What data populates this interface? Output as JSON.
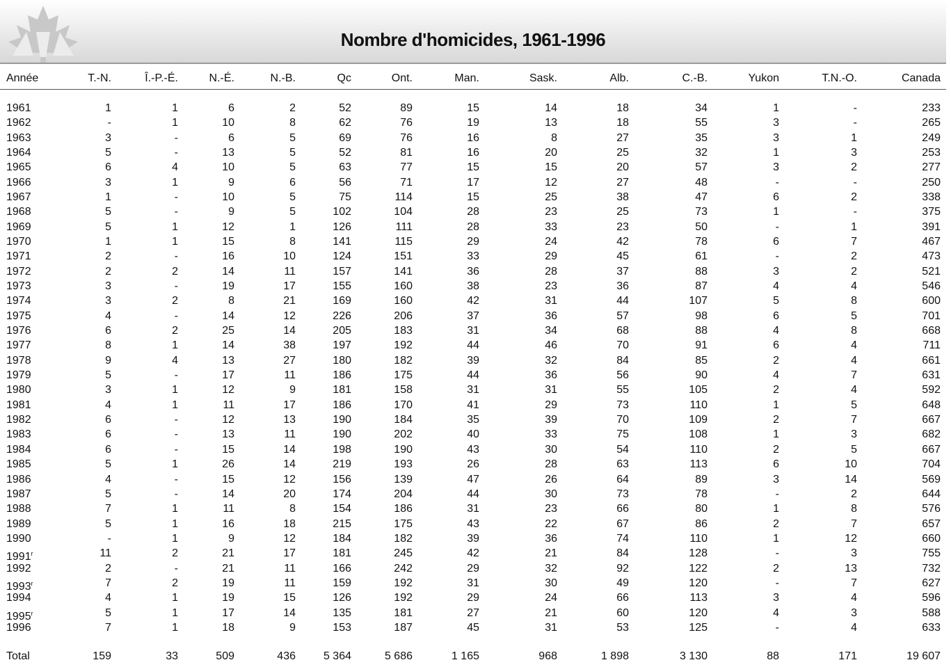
{
  "header": {
    "title": "Nombre d'homicides, 1961-1996"
  },
  "table": {
    "columns": [
      "Année",
      "T.-N.",
      "Î.-P.-É.",
      "N.-É.",
      "N.-B.",
      "Qc",
      "Ont.",
      "Man.",
      "Sask.",
      "Alb.",
      "C.-B.",
      "Yukon",
      "T.N.-O.",
      "Canada"
    ],
    "rows": [
      [
        "1961",
        "1",
        "1",
        "6",
        "2",
        "52",
        "89",
        "15",
        "14",
        "18",
        "34",
        "1",
        "-",
        "233"
      ],
      [
        "1962",
        "-",
        "1",
        "10",
        "8",
        "62",
        "76",
        "19",
        "13",
        "18",
        "55",
        "3",
        "-",
        "265"
      ],
      [
        "1963",
        "3",
        "-",
        "6",
        "5",
        "69",
        "76",
        "16",
        "8",
        "27",
        "35",
        "3",
        "1",
        "249"
      ],
      [
        "1964",
        "5",
        "-",
        "13",
        "5",
        "52",
        "81",
        "16",
        "20",
        "25",
        "32",
        "1",
        "3",
        "253"
      ],
      [
        "1965",
        "6",
        "4",
        "10",
        "5",
        "63",
        "77",
        "15",
        "15",
        "20",
        "57",
        "3",
        "2",
        "277"
      ],
      [
        "1966",
        "3",
        "1",
        "9",
        "6",
        "56",
        "71",
        "17",
        "12",
        "27",
        "48",
        "-",
        "-",
        "250"
      ],
      [
        "1967",
        "1",
        "-",
        "10",
        "5",
        "75",
        "114",
        "15",
        "25",
        "38",
        "47",
        "6",
        "2",
        "338"
      ],
      [
        "1968",
        "5",
        "-",
        "9",
        "5",
        "102",
        "104",
        "28",
        "23",
        "25",
        "73",
        "1",
        "-",
        "375"
      ],
      [
        "1969",
        "5",
        "1",
        "12",
        "1",
        "126",
        "111",
        "28",
        "33",
        "23",
        "50",
        "-",
        "1",
        "391"
      ],
      [
        "1970",
        "1",
        "1",
        "15",
        "8",
        "141",
        "115",
        "29",
        "24",
        "42",
        "78",
        "6",
        "7",
        "467"
      ],
      [
        "1971",
        "2",
        "-",
        "16",
        "10",
        "124",
        "151",
        "33",
        "29",
        "45",
        "61",
        "-",
        "2",
        "473"
      ],
      [
        "1972",
        "2",
        "2",
        "14",
        "11",
        "157",
        "141",
        "36",
        "28",
        "37",
        "88",
        "3",
        "2",
        "521"
      ],
      [
        "1973",
        "3",
        "-",
        "19",
        "17",
        "155",
        "160",
        "38",
        "23",
        "36",
        "87",
        "4",
        "4",
        "546"
      ],
      [
        "1974",
        "3",
        "2",
        "8",
        "21",
        "169",
        "160",
        "42",
        "31",
        "44",
        "107",
        "5",
        "8",
        "600"
      ],
      [
        "1975",
        "4",
        "-",
        "14",
        "12",
        "226",
        "206",
        "37",
        "36",
        "57",
        "98",
        "6",
        "5",
        "701"
      ],
      [
        "1976",
        "6",
        "2",
        "25",
        "14",
        "205",
        "183",
        "31",
        "34",
        "68",
        "88",
        "4",
        "8",
        "668"
      ],
      [
        "1977",
        "8",
        "1",
        "14",
        "38",
        "197",
        "192",
        "44",
        "46",
        "70",
        "91",
        "6",
        "4",
        "711"
      ],
      [
        "1978",
        "9",
        "4",
        "13",
        "27",
        "180",
        "182",
        "39",
        "32",
        "84",
        "85",
        "2",
        "4",
        "661"
      ],
      [
        "1979",
        "5",
        "-",
        "17",
        "11",
        "186",
        "175",
        "44",
        "36",
        "56",
        "90",
        "4",
        "7",
        "631"
      ],
      [
        "1980",
        "3",
        "1",
        "12",
        "9",
        "181",
        "158",
        "31",
        "31",
        "55",
        "105",
        "2",
        "4",
        "592"
      ],
      [
        "1981",
        "4",
        "1",
        "11",
        "17",
        "186",
        "170",
        "41",
        "29",
        "73",
        "110",
        "1",
        "5",
        "648"
      ],
      [
        "1982",
        "6",
        "-",
        "12",
        "13",
        "190",
        "184",
        "35",
        "39",
        "70",
        "109",
        "2",
        "7",
        "667"
      ],
      [
        "1983",
        "6",
        "-",
        "13",
        "11",
        "190",
        "202",
        "40",
        "33",
        "75",
        "108",
        "1",
        "3",
        "682"
      ],
      [
        "1984",
        "6",
        "-",
        "15",
        "14",
        "198",
        "190",
        "43",
        "30",
        "54",
        "110",
        "2",
        "5",
        "667"
      ],
      [
        "1985",
        "5",
        "1",
        "26",
        "14",
        "219",
        "193",
        "26",
        "28",
        "63",
        "113",
        "6",
        "10",
        "704"
      ],
      [
        "1986",
        "4",
        "-",
        "15",
        "12",
        "156",
        "139",
        "47",
        "26",
        "64",
        "89",
        "3",
        "14",
        "569"
      ],
      [
        "1987",
        "5",
        "-",
        "14",
        "20",
        "174",
        "204",
        "44",
        "30",
        "73",
        "78",
        "-",
        "2",
        "644"
      ],
      [
        "1988",
        "7",
        "1",
        "11",
        "8",
        "154",
        "186",
        "31",
        "23",
        "66",
        "80",
        "1",
        "8",
        "576"
      ],
      [
        "1989",
        "5",
        "1",
        "16",
        "18",
        "215",
        "175",
        "43",
        "22",
        "67",
        "86",
        "2",
        "7",
        "657"
      ],
      [
        "1990",
        "-",
        "1",
        "9",
        "12",
        "184",
        "182",
        "39",
        "36",
        "74",
        "110",
        "1",
        "12",
        "660"
      ],
      [
        {
          "text": "1991",
          "sup": "r"
        },
        "11",
        "2",
        "21",
        "17",
        "181",
        "245",
        "42",
        "21",
        "84",
        "128",
        "-",
        "3",
        "755"
      ],
      [
        "1992",
        "2",
        "-",
        "21",
        "11",
        "166",
        "242",
        "29",
        "32",
        "92",
        "122",
        "2",
        "13",
        "732"
      ],
      [
        {
          "text": "1993",
          "sup": "r"
        },
        "7",
        "2",
        "19",
        "11",
        "159",
        "192",
        "31",
        "30",
        "49",
        "120",
        "-",
        "7",
        "627"
      ],
      [
        "1994",
        "4",
        "1",
        "19",
        "15",
        "126",
        "192",
        "29",
        "24",
        "66",
        "113",
        "3",
        "4",
        "596"
      ],
      [
        {
          "text": "1995",
          "sup": "r"
        },
        "5",
        "1",
        "17",
        "14",
        "135",
        "181",
        "27",
        "21",
        "60",
        "120",
        "4",
        "3",
        "588"
      ],
      [
        "1996",
        "7",
        "1",
        "18",
        "9",
        "153",
        "187",
        "45",
        "31",
        "53",
        "125",
        "-",
        "4",
        "633"
      ]
    ],
    "total": [
      "Total",
      "159",
      "33",
      "509",
      "436",
      "5 364",
      "5 686",
      "1 165",
      "968",
      "1 898",
      "3 130",
      "88",
      "171",
      "19 607"
    ]
  }
}
